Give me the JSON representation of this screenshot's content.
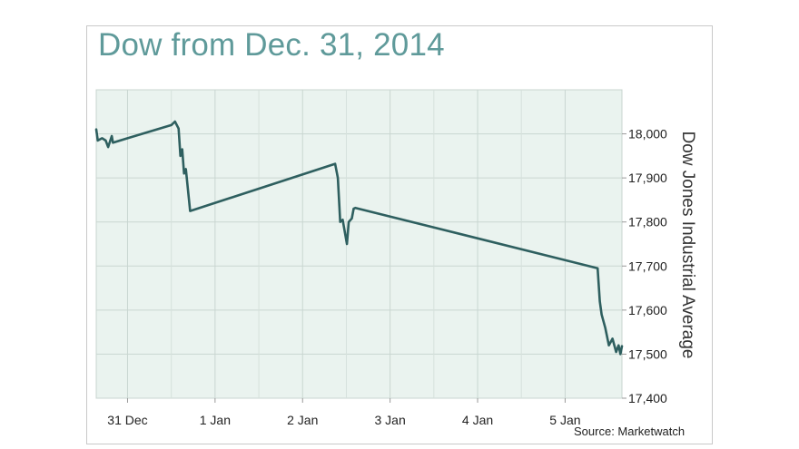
{
  "chart_data": {
    "type": "line",
    "title": "Dow from Dec. 31, 2014",
    "ylabel": "Dow Jones Industrial Average",
    "xlabel": "",
    "source": "Source: Marketwatch",
    "ylim": [
      17400,
      18100
    ],
    "xlim": [
      "2014-12-30T15:25",
      "2015-01-05T15:35"
    ],
    "grid": true,
    "yticks": [
      {
        "value": 17400,
        "label": "17,400"
      },
      {
        "value": 17500,
        "label": "17,500"
      },
      {
        "value": 17600,
        "label": "17,600"
      },
      {
        "value": 17700,
        "label": "17,700"
      },
      {
        "value": 17800,
        "label": "17,800"
      },
      {
        "value": 17900,
        "label": "17,900"
      },
      {
        "value": 18000,
        "label": "18,000"
      }
    ],
    "xticks": [
      {
        "value": "2014-12-31T00:00",
        "label": "31 Dec"
      },
      {
        "value": "2015-01-01T00:00",
        "label": "1 Jan"
      },
      {
        "value": "2015-01-02T00:00",
        "label": "2 Jan"
      },
      {
        "value": "2015-01-03T00:00",
        "label": "3 Jan"
      },
      {
        "value": "2015-01-04T00:00",
        "label": "4 Jan"
      },
      {
        "value": "2015-01-05T00:00",
        "label": "5 Jan"
      }
    ],
    "series": [
      {
        "color": "#2e5f5f",
        "points": [
          [
            "2014-12-30T15:25",
            18010
          ],
          [
            "2014-12-30T15:50",
            17985
          ],
          [
            "2014-12-30T17:00",
            17990
          ],
          [
            "2014-12-30T18:00",
            17985
          ],
          [
            "2014-12-30T18:40",
            17970
          ],
          [
            "2014-12-30T19:40",
            17995
          ],
          [
            "2014-12-30T20:00",
            17980
          ],
          [
            "2014-12-31T00:00",
            17990
          ],
          [
            "2014-12-31T06:00",
            18005
          ],
          [
            "2014-12-31T12:00",
            18020
          ],
          [
            "2014-12-31T13:00",
            18028
          ],
          [
            "2014-12-31T14:00",
            18012
          ],
          [
            "2014-12-31T14:30",
            17950
          ],
          [
            "2014-12-31T15:00",
            17965
          ],
          [
            "2014-12-31T15:30",
            17910
          ],
          [
            "2014-12-31T16:00",
            17920
          ],
          [
            "2014-12-31T17:10",
            17825
          ],
          [
            "2015-01-02T08:55",
            17932
          ],
          [
            "2015-01-02T09:40",
            17900
          ],
          [
            "2015-01-02T10:20",
            17800
          ],
          [
            "2015-01-02T11:00",
            17805
          ],
          [
            "2015-01-02T12:10",
            17750
          ],
          [
            "2015-01-02T12:40",
            17800
          ],
          [
            "2015-01-02T13:30",
            17808
          ],
          [
            "2015-01-02T14:00",
            17830
          ],
          [
            "2015-01-02T14:30",
            17832
          ],
          [
            "2015-01-05T08:55",
            17695
          ],
          [
            "2015-01-05T09:30",
            17620
          ],
          [
            "2015-01-05T10:00",
            17590
          ],
          [
            "2015-01-05T11:00",
            17560
          ],
          [
            "2015-01-05T12:00",
            17520
          ],
          [
            "2015-01-05T13:00",
            17535
          ],
          [
            "2015-01-05T14:00",
            17505
          ],
          [
            "2015-01-05T14:40",
            17520
          ],
          [
            "2015-01-05T15:10",
            17500
          ],
          [
            "2015-01-05T15:35",
            17518
          ]
        ]
      }
    ]
  }
}
